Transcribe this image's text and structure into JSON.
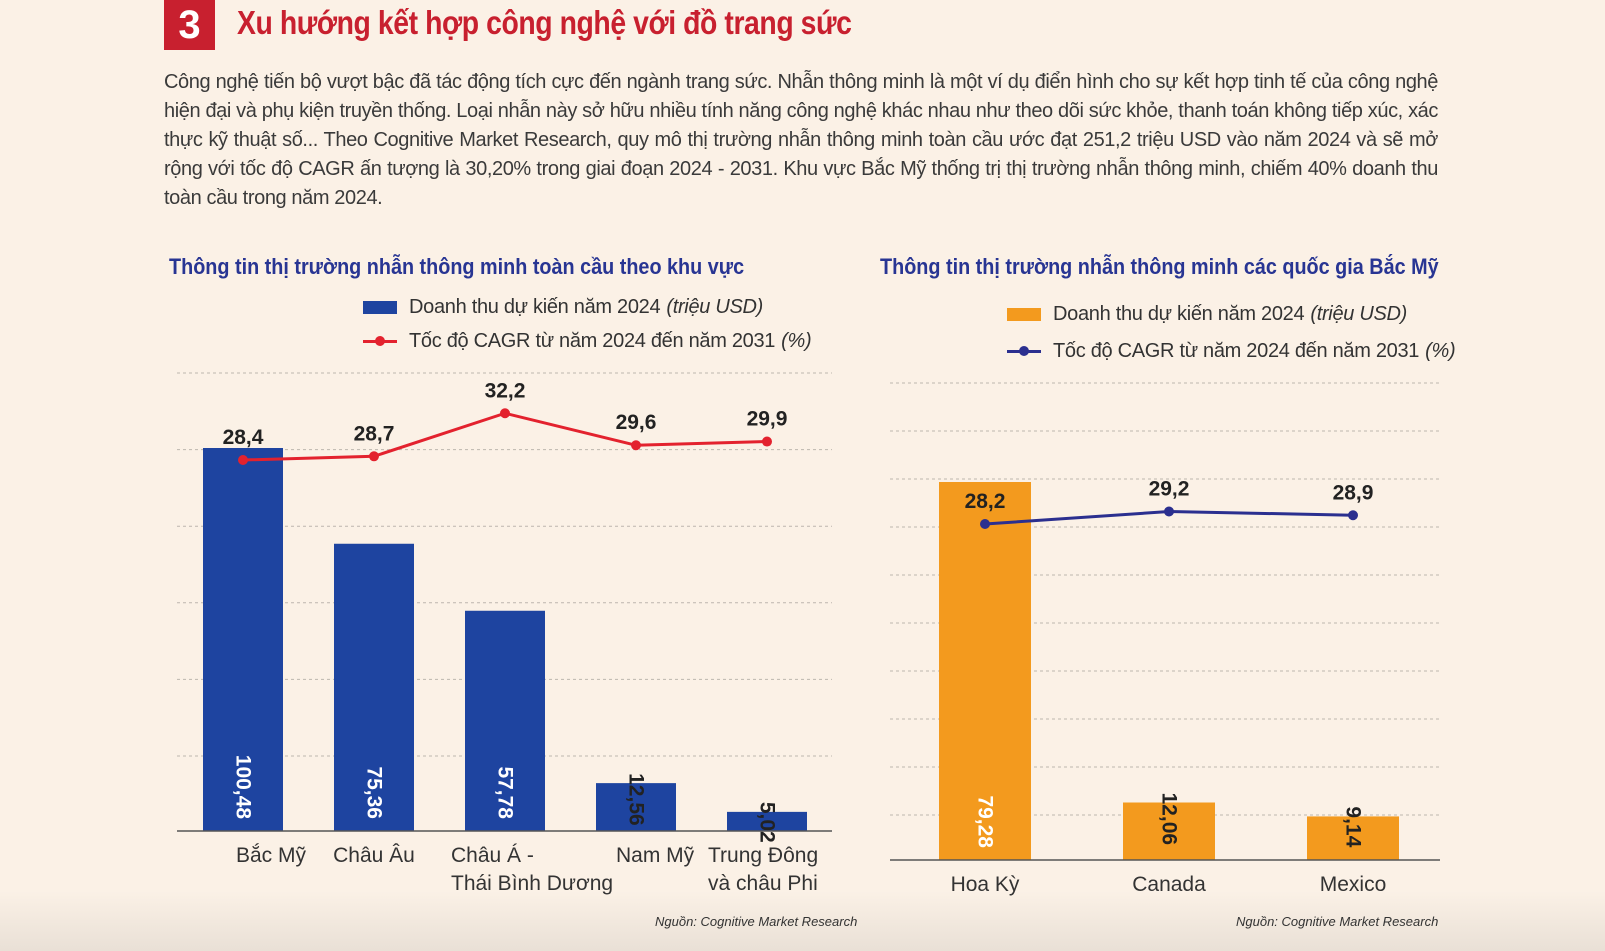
{
  "section": {
    "number": "3",
    "title": "Xu hướng kết hợp công nghệ với đồ trang sức"
  },
  "intro": "Công nghệ tiến bộ vượt bậc đã tác động tích cực đến ngành trang sức. Nhẫn thông minh là một ví dụ điển hình cho sự kết hợp tinh tế của công nghệ hiện đại và phụ kiện truyền thống. Loại nhẫn này sở hữu nhiều tính năng công nghệ khác nhau như theo dõi sức khỏe, thanh toán không tiếp xúc, xác thực kỹ thuật số... Theo Cognitive Market Research, quy mô thị trường nhẫn thông minh toàn cầu ước đạt 251,2 triệu USD vào năm 2024 và sẽ mở rộng với tốc độ CAGR ấn tượng là 30,20% trong giai đoạn 2024 - 2031. Khu vực Bắc Mỹ thống trị thị trường nhẫn thông minh, chiếm 40% doanh thu toàn cầu trong năm 2024.",
  "colors": {
    "accent": "#c8202f",
    "title_blue": "#283593",
    "bar_blue": "#1e44a0",
    "line_red": "#e3222e",
    "bar_orange": "#f39a1e",
    "line_navy": "#2b2f8f"
  },
  "chart_data": [
    {
      "type": "bar",
      "title": "Thông tin thị trường nhẫn thông minh toàn cầu theo khu vực",
      "categories": [
        "Bắc Mỹ",
        "Châu Âu",
        "Châu Á - Thái  Bình Dương",
        "Nam Mỹ",
        "Trung Đông và châu Phi"
      ],
      "category_lines": [
        [
          "Bắc Mỹ"
        ],
        [
          "Châu Âu"
        ],
        [
          "Châu Á -",
          "Thái  Bình Dương"
        ],
        [
          "Nam Mỹ"
        ],
        [
          "Trung Đông",
          "và châu Phi"
        ]
      ],
      "series": [
        {
          "name": "Doanh thu dự kiến năm 2024",
          "unit": "(triệu USD)",
          "kind": "bar",
          "values": [
            100.48,
            75.36,
            57.78,
            12.56,
            5.02
          ],
          "labels": [
            "100,48",
            "75,36",
            "57,78",
            "12,56",
            "5,02"
          ]
        },
        {
          "name": "Tốc độ CAGR từ năm 2024 đến năm 2031",
          "unit": "(%)",
          "kind": "line",
          "values": [
            28.4,
            28.7,
            32.2,
            29.6,
            29.9
          ],
          "labels": [
            "28,4",
            "28,7",
            "32,2",
            "29,6",
            "29,9"
          ]
        }
      ],
      "source": "Nguồn: Cognitive Market Research",
      "legend_position": "top",
      "grid": true
    },
    {
      "type": "bar",
      "title": "Thông tin thị trường nhẫn thông minh các quốc gia Bắc Mỹ",
      "categories": [
        "Hoa Kỳ",
        "Canada",
        "Mexico"
      ],
      "category_lines": [
        [
          "Hoa Kỳ"
        ],
        [
          "Canada"
        ],
        [
          "Mexico"
        ]
      ],
      "series": [
        {
          "name": "Doanh thu dự kiến năm 2024",
          "unit": "(triệu USD)",
          "kind": "bar",
          "values": [
            79.28,
            12.06,
            9.14
          ],
          "labels": [
            "79,28",
            "12,06",
            "9,14"
          ]
        },
        {
          "name": "Tốc độ CAGR từ năm 2024 đến năm 2031",
          "unit": "(%)",
          "kind": "line",
          "values": [
            28.2,
            29.2,
            28.9
          ],
          "labels": [
            "28,2",
            "29,2",
            "28,9"
          ]
        }
      ],
      "source": "Nguồn: Cognitive Market Research",
      "legend_position": "top",
      "grid": true
    }
  ]
}
